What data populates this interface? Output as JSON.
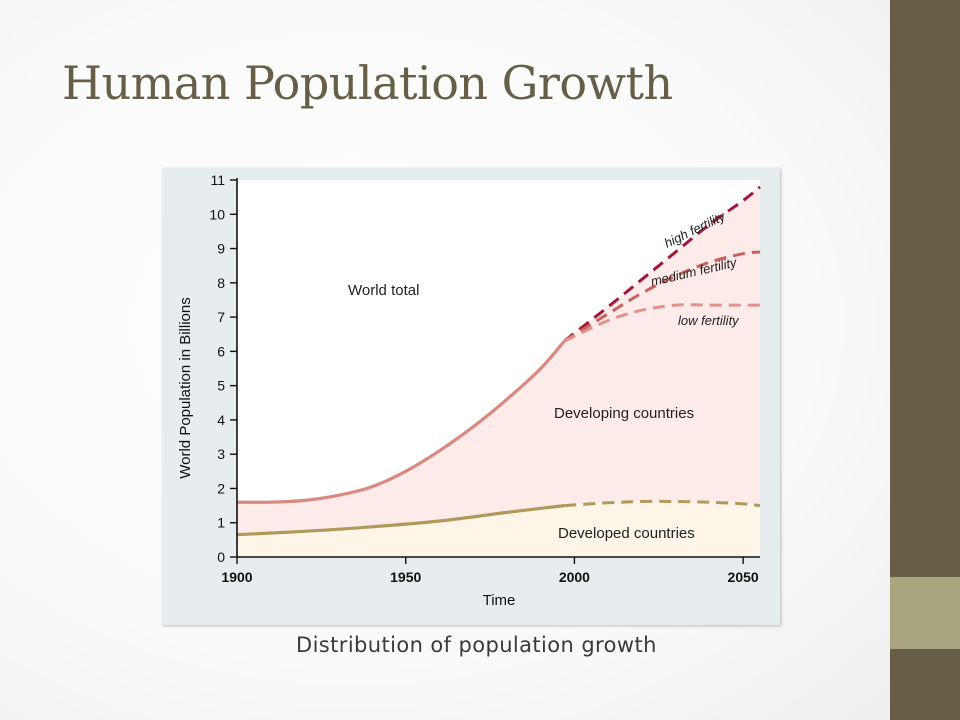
{
  "slide": {
    "title": "Human Population Growth",
    "caption": "Distribution of population growth",
    "colors": {
      "sidebar": "#665e46",
      "sidebar_accent": "#a8a57f",
      "title": "#665e46"
    }
  },
  "chart_data": {
    "type": "area",
    "title": "",
    "xlabel": "Time",
    "ylabel": "World Population in Billions",
    "xlim": [
      1900,
      2055
    ],
    "ylim": [
      0,
      11
    ],
    "x_ticks": [
      1900,
      1950,
      2000,
      2050
    ],
    "y_ticks": [
      0,
      1,
      2,
      3,
      4,
      5,
      6,
      7,
      8,
      9,
      10,
      11
    ],
    "grid": false,
    "series": [
      {
        "name": "World total",
        "style": "solid",
        "color": "#d88a80",
        "x": [
          1900,
          1910,
          1920,
          1930,
          1940,
          1950,
          1960,
          1970,
          1980,
          1990,
          1997
        ],
        "values": [
          1.6,
          1.6,
          1.65,
          1.8,
          2.05,
          2.5,
          3.1,
          3.8,
          4.6,
          5.5,
          6.3
        ]
      },
      {
        "name": "Developed countries",
        "style": "solid",
        "color": "#b09a5a",
        "x": [
          1900,
          1920,
          1940,
          1960,
          1980,
          1997
        ],
        "values": [
          0.65,
          0.75,
          0.88,
          1.05,
          1.3,
          1.5
        ]
      },
      {
        "name": "high fertility",
        "style": "dashed",
        "color": "#a3163a",
        "x": [
          1997,
          2010,
          2020,
          2030,
          2040,
          2050,
          2055
        ],
        "values": [
          6.3,
          7.3,
          8.1,
          8.9,
          9.7,
          10.4,
          10.8
        ]
      },
      {
        "name": "medium fertility",
        "style": "dashed",
        "color": "#c9625c",
        "x": [
          1997,
          2010,
          2020,
          2030,
          2040,
          2050,
          2055
        ],
        "values": [
          6.3,
          7.1,
          7.7,
          8.2,
          8.6,
          8.85,
          8.9
        ]
      },
      {
        "name": "low fertility",
        "style": "dashed",
        "color": "#e0918a",
        "x": [
          1997,
          2010,
          2020,
          2030,
          2040,
          2050,
          2055
        ],
        "values": [
          6.3,
          6.9,
          7.2,
          7.35,
          7.35,
          7.35,
          7.35
        ]
      },
      {
        "name": "Developed countries projection",
        "style": "dashed",
        "color": "#b09a5a",
        "x": [
          1997,
          2010,
          2020,
          2030,
          2040,
          2050,
          2055
        ],
        "values": [
          1.5,
          1.58,
          1.62,
          1.62,
          1.6,
          1.55,
          1.5
        ]
      }
    ],
    "region_labels": [
      "World total",
      "Developing countries",
      "Developed countries"
    ],
    "fills": {
      "developing": "#fdebea",
      "developed": "#fdf5e8"
    }
  }
}
